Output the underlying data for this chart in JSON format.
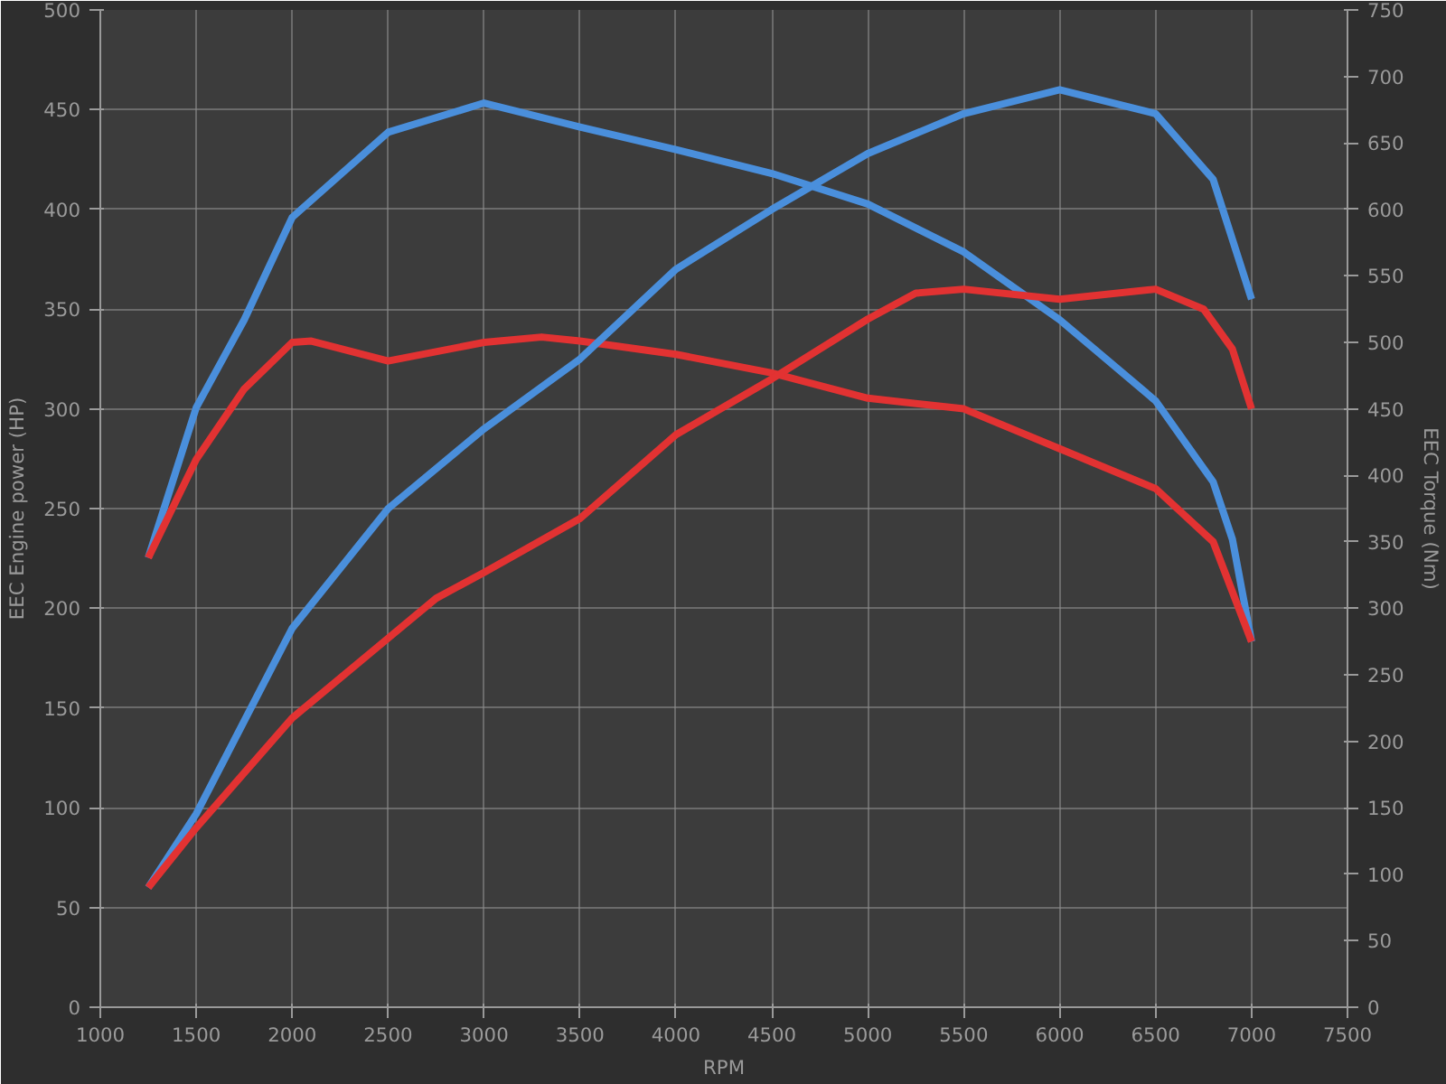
{
  "chart_data": {
    "type": "line",
    "xlabel": "RPM",
    "ylabel": "EEC Engine power (HP)",
    "y2label": "EEC Torque (Nm)",
    "xlim": [
      1000,
      7500
    ],
    "xticks": [
      1000,
      1500,
      2000,
      2500,
      3000,
      3500,
      4000,
      4500,
      5000,
      5500,
      6000,
      6500,
      7000,
      7500
    ],
    "ylim": [
      0,
      500
    ],
    "yticks": [
      0,
      50,
      100,
      150,
      200,
      250,
      300,
      350,
      400,
      450,
      500
    ],
    "y2lim": [
      0,
      750
    ],
    "y2ticks": [
      0,
      50,
      100,
      150,
      200,
      250,
      300,
      350,
      400,
      450,
      500,
      550,
      600,
      650,
      700,
      750
    ],
    "grid": true,
    "marker": "none",
    "line_style": "solid",
    "series": [
      {
        "color": "#4a8fdc",
        "x": [
          1250,
          1500,
          1750,
          2000,
          2500,
          3000,
          3500,
          4000,
          4500,
          5000,
          5500,
          6000,
          6500,
          6800,
          6900,
          7000
        ],
        "values": [
          338,
          451,
          517,
          594,
          658,
          680,
          662,
          645,
          627,
          604,
          568,
          517,
          456,
          395,
          352,
          275
        ],
        "axis": "y2"
      },
      {
        "color": "#e23232",
        "x": [
          1250,
          1500,
          1750,
          2000,
          2100,
          2500,
          3000,
          3300,
          3500,
          4000,
          4500,
          5000,
          5500,
          6000,
          6500,
          6800,
          7000
        ],
        "values": [
          338,
          412,
          465,
          500,
          501,
          486,
          500,
          504,
          501,
          491,
          477,
          458,
          450,
          420,
          390,
          350,
          275
        ],
        "axis": "y2"
      },
      {
        "color": "#4a8fdc",
        "x": [
          1250,
          1500,
          2000,
          2500,
          3000,
          3500,
          4000,
          4500,
          5000,
          5500,
          6000,
          6500,
          6800,
          7000
        ],
        "values": [
          60,
          97,
          190,
          250,
          290,
          325,
          370,
          400,
          428,
          448,
          460,
          448,
          415,
          355
        ]
      },
      {
        "color": "#e23232",
        "x": [
          1250,
          1500,
          2000,
          2500,
          2750,
          3000,
          3500,
          4000,
          4500,
          5000,
          5250,
          5500,
          6000,
          6500,
          6750,
          6900,
          7000
        ],
        "values": [
          60,
          90,
          145,
          185,
          205,
          218,
          245,
          287,
          315,
          345,
          358,
          360,
          355,
          360,
          350,
          330,
          300
        ]
      }
    ]
  }
}
